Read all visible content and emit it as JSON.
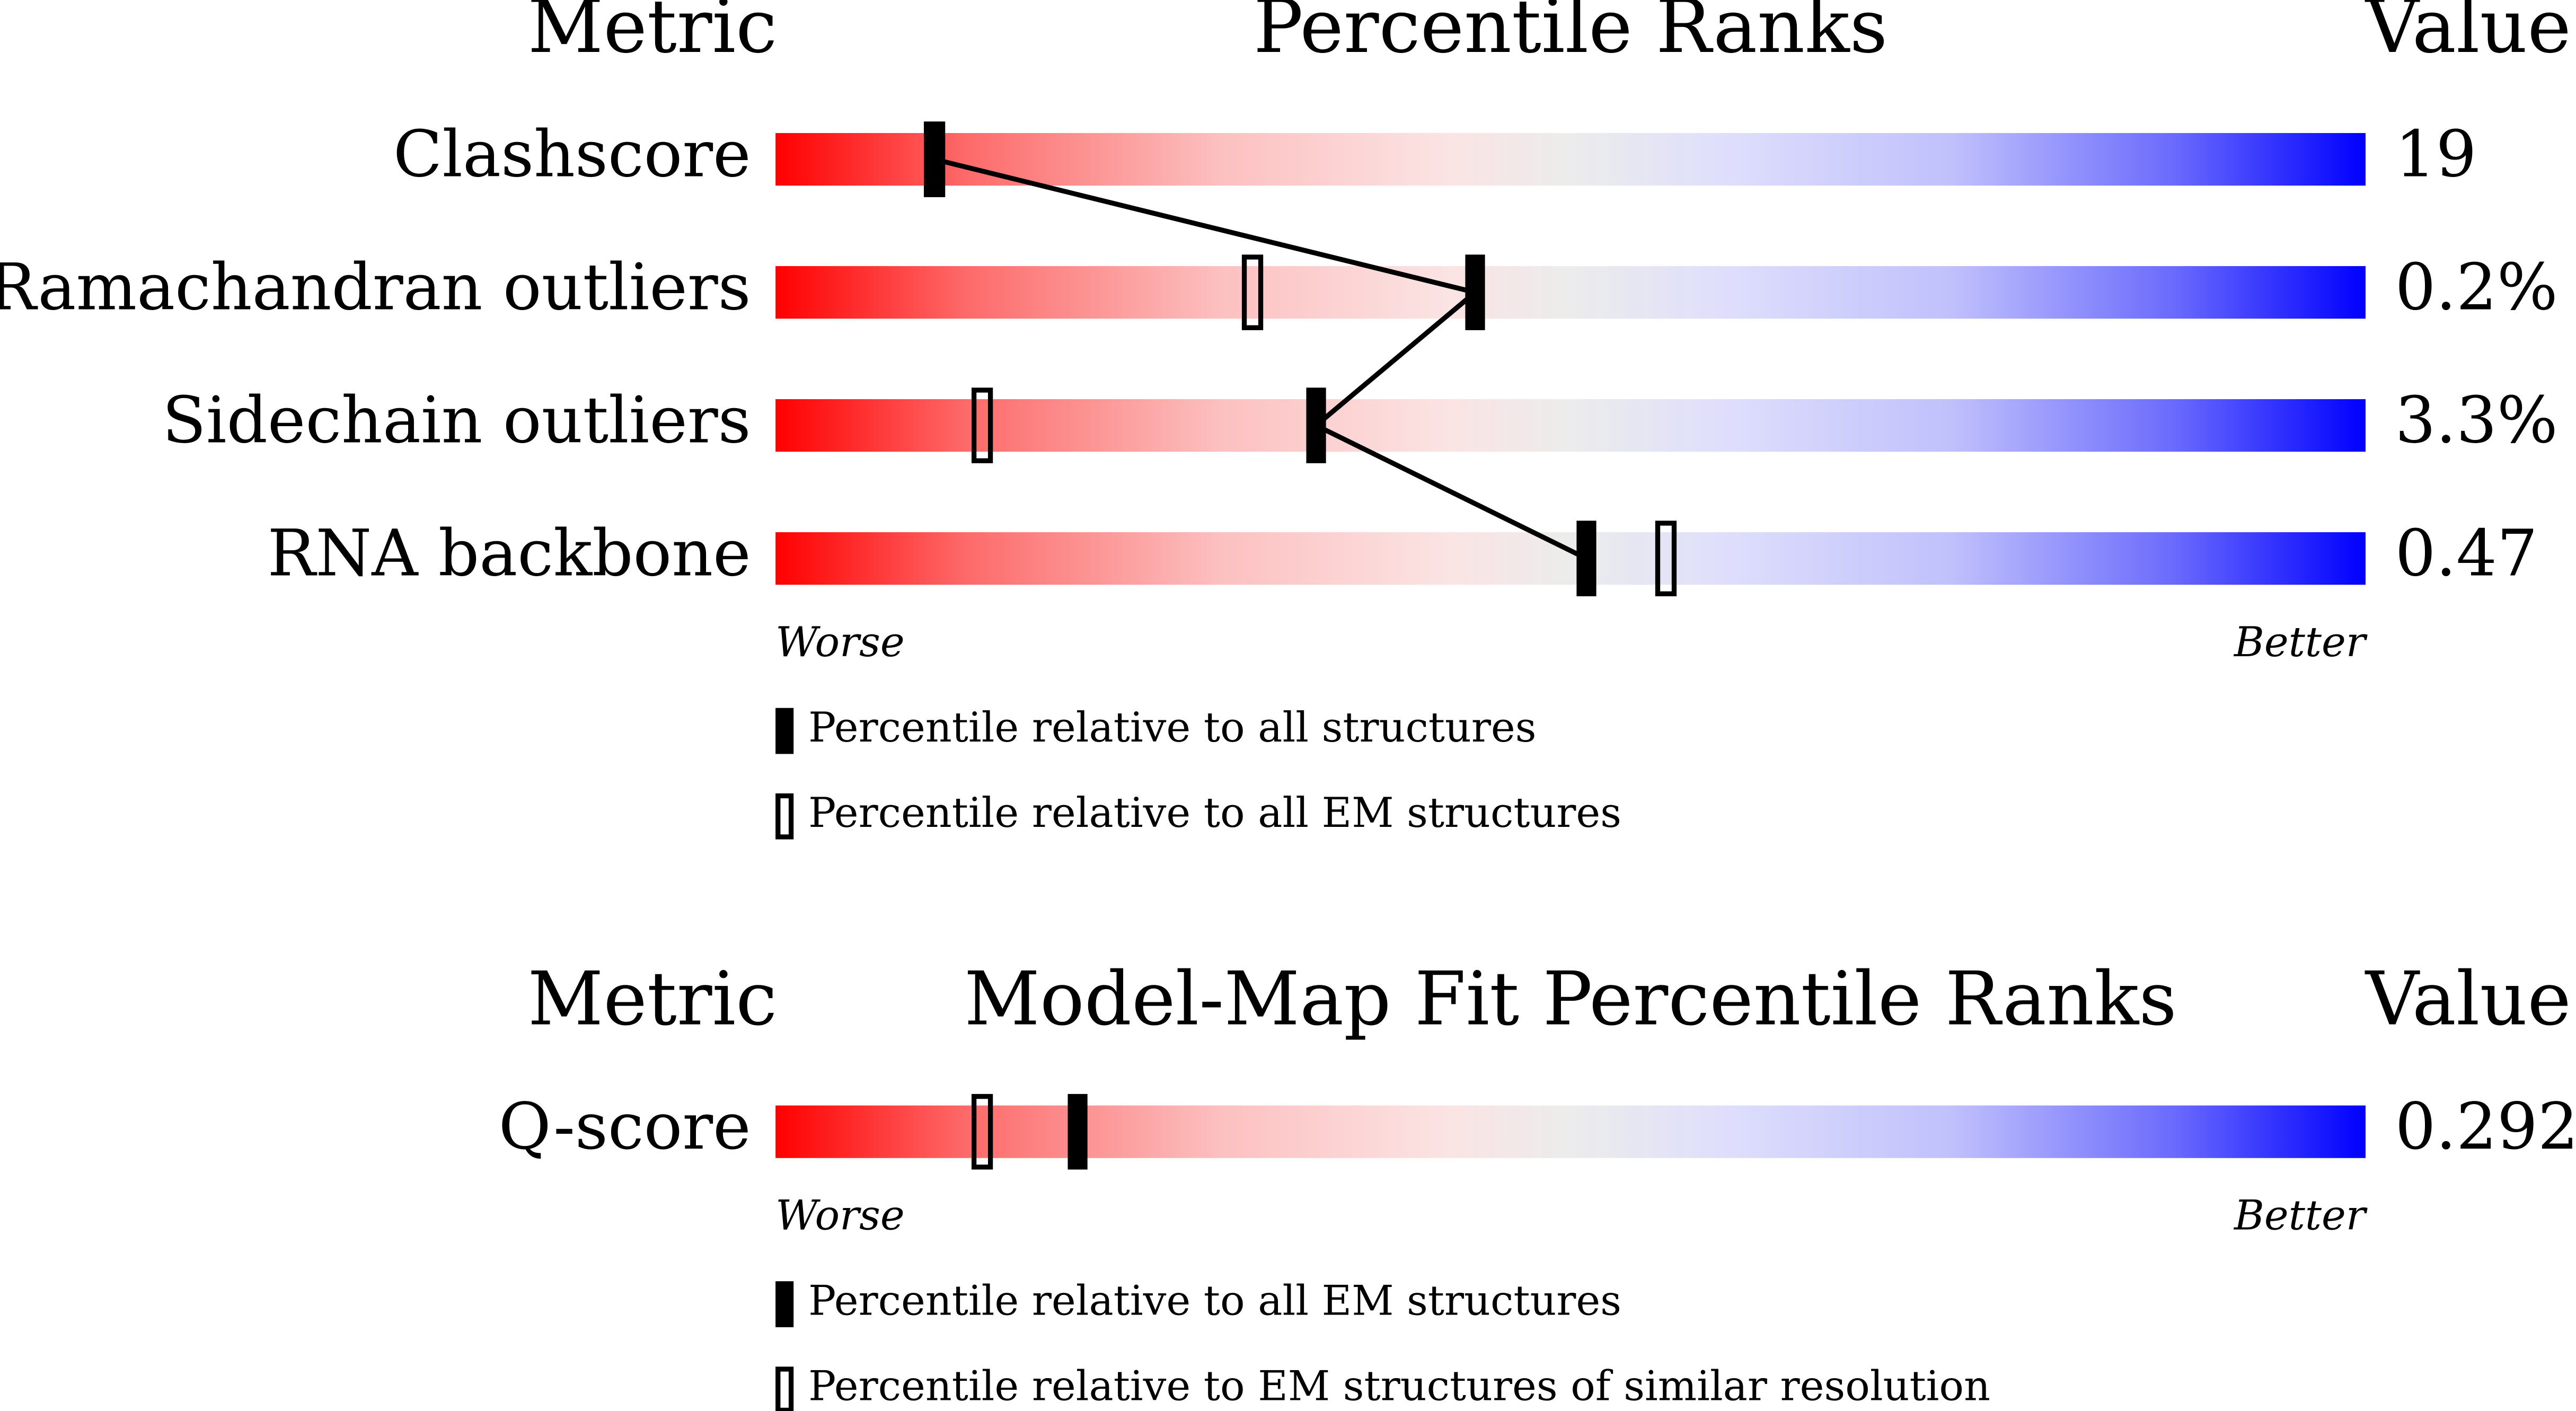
{
  "chart_data": [
    {
      "type": "percentile-slider",
      "header": {
        "metric": "Metric",
        "title": "Percentile Ranks",
        "value": "Value"
      },
      "categories": [
        "Clashscore",
        "Ramachandran outliers",
        "Sidechain outliers",
        "RNA backbone"
      ],
      "metric_values": [
        "19",
        "0.2%",
        "3.3%",
        "0.47"
      ],
      "xlim": [
        0,
        100
      ],
      "axis_labels": {
        "low": "Worse",
        "high": "Better"
      },
      "connect": true,
      "series": [
        {
          "name": "Percentile relative to all structures",
          "marker": "filled",
          "color": "#000000",
          "values": [
            10,
            44,
            34,
            51
          ]
        },
        {
          "name": "Percentile relative to all EM structures",
          "marker": "open",
          "color": "#000000",
          "values": [
            10,
            30,
            13,
            56
          ]
        }
      ]
    },
    {
      "type": "percentile-slider",
      "header": {
        "metric": "Metric",
        "title": "Model-Map Fit Percentile Ranks",
        "value": "Value"
      },
      "categories": [
        "Q-score"
      ],
      "metric_values": [
        "0.292"
      ],
      "xlim": [
        0,
        100
      ],
      "axis_labels": {
        "low": "Worse",
        "high": "Better"
      },
      "connect": true,
      "series": [
        {
          "name": "Percentile relative to all EM structures",
          "marker": "filled",
          "color": "#000000",
          "values": [
            19
          ]
        },
        {
          "name": "Percentile relative to EM structures of similar resolution",
          "marker": "open",
          "color": "#000000",
          "values": [
            13
          ]
        }
      ]
    }
  ]
}
